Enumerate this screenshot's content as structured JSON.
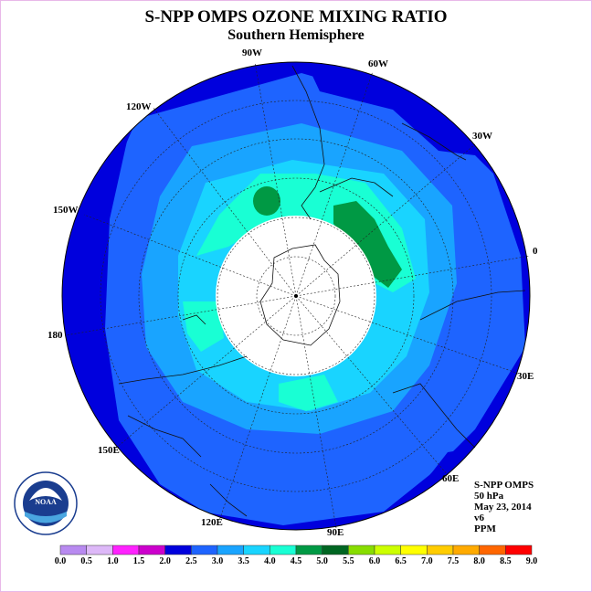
{
  "header": {
    "title": "S-NPP OMPS OZONE MIXING RATIO",
    "subtitle": "Southern Hemisphere"
  },
  "info": {
    "instrument": "S-NPP OMPS",
    "level": "50 hPa",
    "date": "May 23, 2014",
    "version": "v6",
    "units": "PPM"
  },
  "longitude_labels": [
    "90W",
    "60W",
    "30W",
    "120W",
    "150W",
    "0",
    "180",
    "30E",
    "150E",
    "60E",
    "120E",
    "90E"
  ],
  "logo_text": "NOAA",
  "colorbar": {
    "ticks": [
      "0.0",
      "0.5",
      "1.0",
      "1.5",
      "2.0",
      "2.5",
      "3.0",
      "3.5",
      "4.0",
      "4.5",
      "5.0",
      "5.5",
      "6.0",
      "6.5",
      "7.0",
      "7.5",
      "8.0",
      "8.5",
      "9.0"
    ],
    "colors": [
      "#b88af0",
      "#ddb8f8",
      "#ff22ff",
      "#cc00cc",
      "#0000dd",
      "#1e64ff",
      "#19a4ff",
      "#19d4ff",
      "#19ffd4",
      "#009944",
      "#006622",
      "#88dd00",
      "#ccff00",
      "#ffff00",
      "#ffcc00",
      "#ffaa00",
      "#ff6600",
      "#ff0000",
      "#885533"
    ]
  },
  "colors": {
    "band_2_0": "#0000dd",
    "band_2_5": "#1e64ff",
    "band_3_0": "#19a4ff",
    "band_3_5": "#19d4ff",
    "band_4_0": "#19ffd4",
    "band_4_5": "#009944",
    "no_data": "#ffffff"
  }
}
